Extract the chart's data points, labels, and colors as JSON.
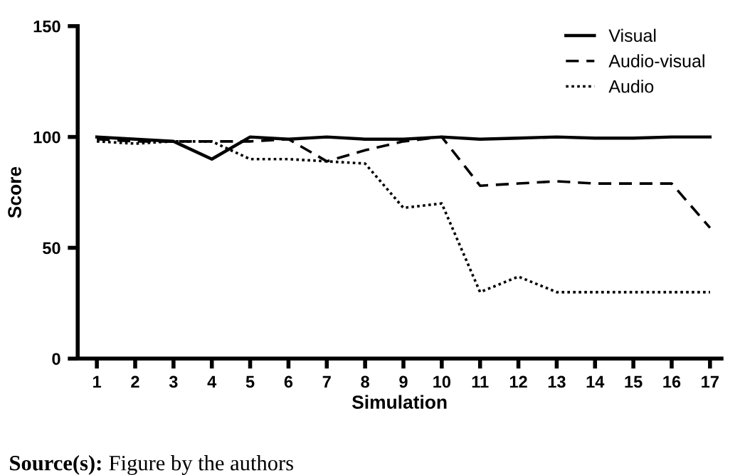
{
  "chart_data": {
    "type": "line",
    "xlabel": "Simulation",
    "ylabel": "Score",
    "x": [
      1,
      2,
      3,
      4,
      5,
      6,
      7,
      8,
      9,
      10,
      11,
      12,
      13,
      14,
      15,
      16,
      17
    ],
    "series": [
      {
        "name": "Visual",
        "color": "#000000",
        "line_style": "solid",
        "values": [
          100,
          99,
          98,
          90,
          100,
          99,
          100,
          99,
          99,
          100,
          99,
          99.5,
          100,
          99.5,
          99.5,
          100,
          100
        ]
      },
      {
        "name": "Audio-visual",
        "color": "#000000",
        "line_style": "dashed",
        "values": [
          99,
          98,
          98,
          98,
          98,
          99,
          89,
          94,
          98,
          100,
          78,
          79,
          80,
          79,
          79,
          79,
          59
        ]
      },
      {
        "name": "Audio",
        "color": "#000000",
        "line_style": "dotted",
        "values": [
          98,
          97,
          98,
          98,
          90,
          90,
          89,
          88,
          68,
          70,
          30,
          37,
          30,
          30,
          30,
          30,
          30
        ]
      }
    ],
    "xlim": [
      0.5,
      17.3
    ],
    "xticks": [
      1,
      2,
      3,
      4,
      5,
      6,
      7,
      8,
      9,
      10,
      11,
      12,
      13,
      14,
      15,
      16,
      17
    ],
    "ylim": [
      0,
      150
    ],
    "yticks": [
      0,
      50,
      100,
      150
    ],
    "grid": false,
    "legend": "top right",
    "marker": "none",
    "annotations": [
      "Source(s): Figure by the authors"
    ]
  }
}
